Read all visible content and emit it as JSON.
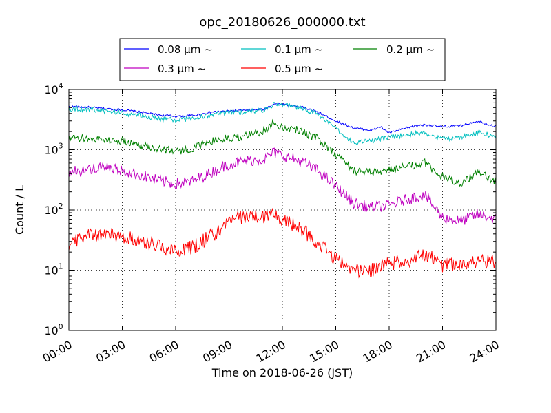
{
  "chart_data": {
    "type": "line",
    "title": "opc_20180626_000000.txt",
    "xlabel": "Time on 2018-06-26 (JST)",
    "ylabel": "Count / L",
    "yscale": "log",
    "ylim": [
      1,
      10000
    ],
    "xlim": [
      0,
      24
    ],
    "grid": true,
    "legend": {
      "placement": "top-center",
      "ncol": 3
    },
    "y_tick_labels": [
      {
        "base": "10",
        "exp": "0",
        "value": 1
      },
      {
        "base": "10",
        "exp": "1",
        "value": 10
      },
      {
        "base": "10",
        "exp": "2",
        "value": 100
      },
      {
        "base": "10",
        "exp": "3",
        "value": 1000
      },
      {
        "base": "10",
        "exp": "4",
        "value": 10000
      }
    ],
    "x_tick_labels": [
      "00:00",
      "03:00",
      "06:00",
      "09:00",
      "12:00",
      "15:00",
      "18:00",
      "21:00",
      "24:00"
    ],
    "x_tick_values": [
      0,
      3,
      6,
      9,
      12,
      15,
      18,
      21,
      24
    ],
    "series": [
      {
        "name": "0.08 μm ~",
        "color": "#0000ff",
        "x": [
          0,
          1,
          2,
          3,
          4,
          5,
          6,
          7,
          8,
          9,
          10,
          11,
          11.5,
          12,
          12.5,
          13,
          14,
          15,
          16,
          17,
          17.5,
          18,
          19,
          19.5,
          20,
          21,
          22,
          23,
          24
        ],
        "y": [
          5200,
          5100,
          4800,
          4600,
          4200,
          3800,
          3600,
          3700,
          4200,
          4400,
          4500,
          4700,
          5800,
          5700,
          5400,
          5200,
          4200,
          3000,
          2300,
          2100,
          2400,
          1900,
          2300,
          2500,
          2600,
          2400,
          2500,
          3000,
          2400
        ]
      },
      {
        "name": "0.1 μm ~",
        "color": "#00bfbf",
        "x": [
          0,
          1,
          2,
          3,
          4,
          5,
          6,
          7,
          8,
          9,
          10,
          11,
          11.5,
          12,
          12.5,
          13,
          14,
          15,
          16,
          17,
          18,
          19,
          20,
          21,
          22,
          23,
          24
        ],
        "y": [
          4800,
          4700,
          4400,
          4100,
          3700,
          3300,
          3100,
          3300,
          3800,
          4100,
          4300,
          4600,
          5700,
          5600,
          5300,
          4900,
          3900,
          2200,
          1300,
          1400,
          1600,
          1800,
          1900,
          1500,
          1600,
          1900,
          1700
        ]
      },
      {
        "name": "0.2 μm ~",
        "color": "#008000",
        "x": [
          0,
          1,
          2,
          3,
          4,
          5,
          6,
          7,
          8,
          9,
          10,
          11,
          11.5,
          12,
          13,
          14,
          15,
          16,
          17,
          18,
          19,
          20,
          21,
          22,
          23,
          24
        ],
        "y": [
          1500,
          1550,
          1450,
          1400,
          1200,
          1050,
          950,
          1050,
          1400,
          1550,
          1700,
          2100,
          2800,
          2400,
          2100,
          1500,
          850,
          450,
          420,
          460,
          520,
          600,
          350,
          280,
          420,
          300
        ]
      },
      {
        "name": "0.3 μm ~",
        "color": "#bf00bf",
        "x": [
          0,
          1,
          2,
          3,
          4,
          5,
          6,
          7,
          8,
          9,
          10,
          11,
          11.5,
          12,
          13,
          14,
          15,
          16,
          17,
          18,
          19,
          20,
          21,
          22,
          23,
          24
        ],
        "y": [
          420,
          470,
          500,
          450,
          380,
          310,
          270,
          300,
          420,
          580,
          650,
          700,
          900,
          800,
          650,
          450,
          250,
          130,
          110,
          120,
          150,
          180,
          75,
          65,
          85,
          70
        ]
      },
      {
        "name": "0.5 μm ~",
        "color": "#ff0000",
        "x": [
          0,
          1,
          2,
          3,
          4,
          5,
          6,
          7,
          8,
          8.5,
          9,
          10,
          11,
          11.5,
          12,
          13,
          14,
          15,
          16,
          17,
          18,
          19,
          20,
          20.5,
          21,
          22,
          23,
          24
        ],
        "y": [
          28,
          38,
          40,
          36,
          31,
          26,
          21,
          24,
          38,
          45,
          70,
          78,
          76,
          85,
          70,
          50,
          28,
          15,
          10,
          10,
          13,
          14,
          18,
          16,
          12,
          13,
          14,
          14
        ]
      }
    ]
  }
}
